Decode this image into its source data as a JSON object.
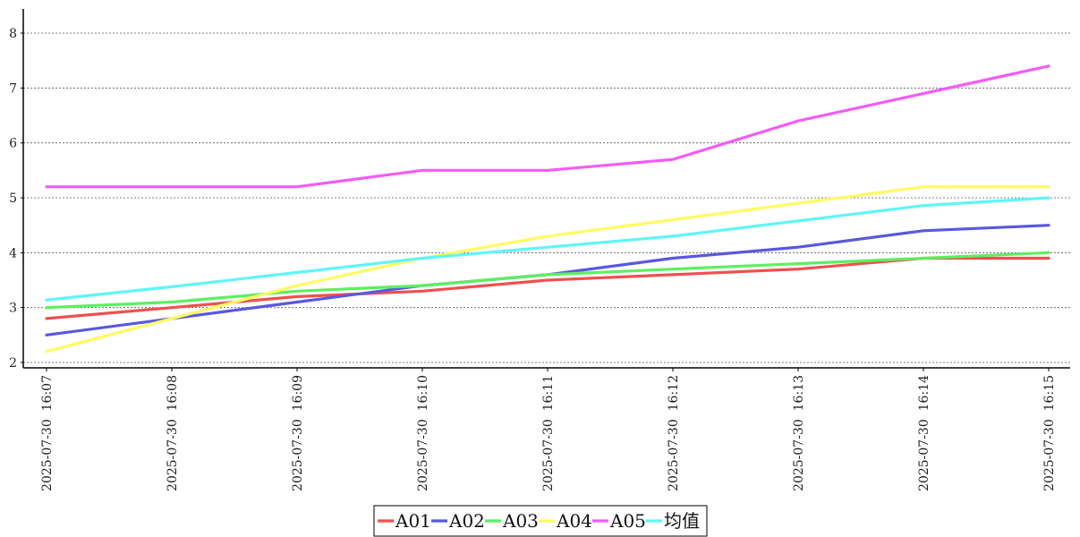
{
  "colors": {
    "A01": "#ee5050",
    "A02": "#5858e0",
    "A03": "#5cf060",
    "A04": "#fffb60",
    "A05": "#f25cf7",
    "mean": "#5ef6f6",
    "grid": "#555555",
    "axis": "#000000"
  },
  "chart_data": {
    "type": "line",
    "title": "",
    "xlabel": "",
    "ylabel": "",
    "ylim": [
      2,
      8.4
    ],
    "yticks": [
      2,
      3,
      4,
      5,
      6,
      7,
      8
    ],
    "grid": true,
    "legend_position": "bottom-center",
    "x": [
      "2025-07-30  16:07",
      "2025-07-30  16:08",
      "2025-07-30  16:09",
      "2025-07-30  16:10",
      "2025-07-30  16:11",
      "2025-07-30  16:12",
      "2025-07-30  16:13",
      "2025-07-30  16:14",
      "2025-07-30  16:15"
    ],
    "series": [
      {
        "name": "A01",
        "color": "#ee5050",
        "values": [
          2.8,
          3.0,
          3.2,
          3.3,
          3.5,
          3.6,
          3.7,
          3.9,
          3.9
        ]
      },
      {
        "name": "A02",
        "color": "#5858e0",
        "values": [
          2.5,
          2.8,
          3.1,
          3.4,
          3.6,
          3.9,
          4.1,
          4.4,
          4.5
        ]
      },
      {
        "name": "A03",
        "color": "#5cf060",
        "values": [
          3.0,
          3.1,
          3.3,
          3.4,
          3.6,
          3.7,
          3.8,
          3.9,
          4.0
        ]
      },
      {
        "name": "A04",
        "color": "#fffb60",
        "values": [
          2.2,
          2.8,
          3.4,
          3.9,
          4.3,
          4.6,
          4.9,
          5.2,
          5.2
        ]
      },
      {
        "name": "A05",
        "color": "#f25cf7",
        "values": [
          5.2,
          5.2,
          5.2,
          5.5,
          5.5,
          5.7,
          6.4,
          6.9,
          7.4
        ]
      },
      {
        "name": "均值",
        "color": "#5ef6f6",
        "values": [
          3.14,
          3.38,
          3.64,
          3.9,
          4.1,
          4.3,
          4.58,
          4.86,
          5.0
        ]
      }
    ]
  }
}
